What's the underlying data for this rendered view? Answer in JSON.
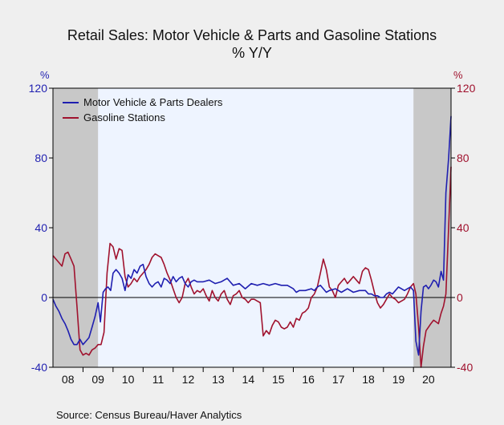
{
  "chart_data": {
    "type": "line",
    "title": "Retail Sales: Motor Vehicle & Parts and Gasoline Stations",
    "subtitle": "% Y/Y",
    "left_axis": {
      "unit": "%",
      "ylim": [
        -40,
        120
      ],
      "ticks": [
        "120",
        "80",
        "40",
        "0",
        "-40"
      ],
      "color": "#1f1fb0"
    },
    "right_axis": {
      "unit": "%",
      "ylim": [
        -40,
        120
      ],
      "ticks": [
        "120",
        "80",
        "40",
        "0",
        "-40"
      ],
      "color": "#a0122e"
    },
    "x_ticks": [
      "08",
      "09",
      "10",
      "11",
      "12",
      "13",
      "14",
      "15",
      "16",
      "17",
      "18",
      "19",
      "20"
    ],
    "x_range": [
      2008.0,
      2021.25
    ],
    "recession_shading": [
      [
        2008.0,
        2009.5
      ],
      [
        2020.0,
        2021.25
      ]
    ],
    "legend": "top-left",
    "grid": false,
    "source": "Source:  Census Bureau/Haver Analytics",
    "series": [
      {
        "name": "Motor Vehicle & Parts Dealers",
        "color": "#1f1fb0",
        "points": [
          [
            2008.0,
            -1
          ],
          [
            2008.1,
            -5
          ],
          [
            2008.2,
            -8
          ],
          [
            2008.3,
            -12
          ],
          [
            2008.4,
            -15
          ],
          [
            2008.5,
            -19
          ],
          [
            2008.6,
            -24
          ],
          [
            2008.7,
            -27
          ],
          [
            2008.8,
            -27
          ],
          [
            2008.9,
            -24
          ],
          [
            2009.0,
            -27
          ],
          [
            2009.1,
            -25
          ],
          [
            2009.2,
            -23
          ],
          [
            2009.3,
            -17
          ],
          [
            2009.4,
            -11
          ],
          [
            2009.5,
            -3
          ],
          [
            2009.58,
            -14
          ],
          [
            2009.67,
            3
          ],
          [
            2009.75,
            5
          ],
          [
            2009.83,
            6
          ],
          [
            2009.92,
            4
          ],
          [
            2010.0,
            14
          ],
          [
            2010.1,
            16
          ],
          [
            2010.2,
            14
          ],
          [
            2010.3,
            11
          ],
          [
            2010.4,
            4
          ],
          [
            2010.5,
            13
          ],
          [
            2010.6,
            11
          ],
          [
            2010.7,
            16
          ],
          [
            2010.8,
            14
          ],
          [
            2010.9,
            18
          ],
          [
            2011.0,
            19
          ],
          [
            2011.1,
            12
          ],
          [
            2011.2,
            8
          ],
          [
            2011.3,
            6
          ],
          [
            2011.4,
            8
          ],
          [
            2011.5,
            9
          ],
          [
            2011.6,
            6
          ],
          [
            2011.7,
            11
          ],
          [
            2011.8,
            10
          ],
          [
            2011.9,
            8
          ],
          [
            2012.0,
            12
          ],
          [
            2012.1,
            9
          ],
          [
            2012.2,
            11
          ],
          [
            2012.3,
            12
          ],
          [
            2012.4,
            8
          ],
          [
            2012.5,
            6
          ],
          [
            2012.6,
            9
          ],
          [
            2012.7,
            10
          ],
          [
            2012.8,
            9
          ],
          [
            2012.9,
            9
          ],
          [
            2013.0,
            9
          ],
          [
            2013.2,
            10
          ],
          [
            2013.4,
            8
          ],
          [
            2013.6,
            9
          ],
          [
            2013.8,
            11
          ],
          [
            2014.0,
            7
          ],
          [
            2014.2,
            8
          ],
          [
            2014.4,
            5
          ],
          [
            2014.6,
            8
          ],
          [
            2014.8,
            7
          ],
          [
            2015.0,
            8
          ],
          [
            2015.2,
            7
          ],
          [
            2015.4,
            8
          ],
          [
            2015.6,
            7
          ],
          [
            2015.8,
            7
          ],
          [
            2016.0,
            5
          ],
          [
            2016.1,
            3
          ],
          [
            2016.2,
            4
          ],
          [
            2016.4,
            4
          ],
          [
            2016.6,
            5
          ],
          [
            2016.7,
            4
          ],
          [
            2016.8,
            6
          ],
          [
            2016.9,
            7
          ],
          [
            2017.0,
            5
          ],
          [
            2017.1,
            3
          ],
          [
            2017.2,
            4
          ],
          [
            2017.4,
            5
          ],
          [
            2017.6,
            3
          ],
          [
            2017.8,
            5
          ],
          [
            2018.0,
            3
          ],
          [
            2018.2,
            4
          ],
          [
            2018.4,
            4
          ],
          [
            2018.5,
            2
          ],
          [
            2018.6,
            2
          ],
          [
            2018.7,
            1
          ],
          [
            2018.8,
            1
          ],
          [
            2018.9,
            0
          ],
          [
            2019.0,
            0
          ],
          [
            2019.1,
            2
          ],
          [
            2019.2,
            3
          ],
          [
            2019.3,
            2
          ],
          [
            2019.4,
            4
          ],
          [
            2019.5,
            6
          ],
          [
            2019.6,
            5
          ],
          [
            2019.7,
            4
          ],
          [
            2019.8,
            5
          ],
          [
            2019.9,
            6
          ],
          [
            2020.0,
            4
          ],
          [
            2020.08,
            -25
          ],
          [
            2020.17,
            -33
          ],
          [
            2020.25,
            -8
          ],
          [
            2020.33,
            6
          ],
          [
            2020.42,
            7
          ],
          [
            2020.5,
            5
          ],
          [
            2020.58,
            7
          ],
          [
            2020.67,
            10
          ],
          [
            2020.75,
            9
          ],
          [
            2020.83,
            6
          ],
          [
            2020.92,
            15
          ],
          [
            2021.0,
            10
          ],
          [
            2021.08,
            60
          ],
          [
            2021.17,
            80
          ],
          [
            2021.25,
            104
          ]
        ]
      },
      {
        "name": "Gasoline Stations",
        "color": "#a0122e",
        "points": [
          [
            2008.0,
            24
          ],
          [
            2008.1,
            22
          ],
          [
            2008.2,
            20
          ],
          [
            2008.3,
            18
          ],
          [
            2008.4,
            25
          ],
          [
            2008.5,
            26
          ],
          [
            2008.6,
            22
          ],
          [
            2008.7,
            18
          ],
          [
            2008.8,
            -5
          ],
          [
            2008.9,
            -30
          ],
          [
            2009.0,
            -33
          ],
          [
            2009.1,
            -32
          ],
          [
            2009.2,
            -33
          ],
          [
            2009.3,
            -30
          ],
          [
            2009.4,
            -29
          ],
          [
            2009.5,
            -27
          ],
          [
            2009.6,
            -27
          ],
          [
            2009.7,
            -20
          ],
          [
            2009.8,
            14
          ],
          [
            2009.9,
            31
          ],
          [
            2010.0,
            29
          ],
          [
            2010.1,
            22
          ],
          [
            2010.2,
            28
          ],
          [
            2010.3,
            27
          ],
          [
            2010.4,
            12
          ],
          [
            2010.5,
            6
          ],
          [
            2010.6,
            8
          ],
          [
            2010.7,
            11
          ],
          [
            2010.8,
            9
          ],
          [
            2010.9,
            12
          ],
          [
            2011.0,
            14
          ],
          [
            2011.1,
            16
          ],
          [
            2011.2,
            19
          ],
          [
            2011.3,
            23
          ],
          [
            2011.4,
            25
          ],
          [
            2011.5,
            24
          ],
          [
            2011.6,
            23
          ],
          [
            2011.7,
            19
          ],
          [
            2011.8,
            14
          ],
          [
            2011.9,
            10
          ],
          [
            2012.0,
            5
          ],
          [
            2012.1,
            0
          ],
          [
            2012.2,
            -3
          ],
          [
            2012.3,
            0
          ],
          [
            2012.4,
            8
          ],
          [
            2012.5,
            11
          ],
          [
            2012.6,
            6
          ],
          [
            2012.7,
            2
          ],
          [
            2012.8,
            4
          ],
          [
            2012.9,
            3
          ],
          [
            2013.0,
            5
          ],
          [
            2013.1,
            1
          ],
          [
            2013.2,
            -2
          ],
          [
            2013.3,
            4
          ],
          [
            2013.4,
            0
          ],
          [
            2013.5,
            -2
          ],
          [
            2013.6,
            2
          ],
          [
            2013.7,
            4
          ],
          [
            2013.8,
            -1
          ],
          [
            2013.9,
            -4
          ],
          [
            2014.0,
            1
          ],
          [
            2014.1,
            2
          ],
          [
            2014.2,
            4
          ],
          [
            2014.3,
            0
          ],
          [
            2014.4,
            -1
          ],
          [
            2014.5,
            -3
          ],
          [
            2014.6,
            -1
          ],
          [
            2014.7,
            -1
          ],
          [
            2014.8,
            -2
          ],
          [
            2014.9,
            -3
          ],
          [
            2015.0,
            -22
          ],
          [
            2015.1,
            -19
          ],
          [
            2015.2,
            -21
          ],
          [
            2015.3,
            -16
          ],
          [
            2015.4,
            -13
          ],
          [
            2015.5,
            -14
          ],
          [
            2015.6,
            -17
          ],
          [
            2015.7,
            -18
          ],
          [
            2015.8,
            -17
          ],
          [
            2015.9,
            -14
          ],
          [
            2016.0,
            -17
          ],
          [
            2016.1,
            -12
          ],
          [
            2016.2,
            -13
          ],
          [
            2016.3,
            -9
          ],
          [
            2016.4,
            -8
          ],
          [
            2016.5,
            -6
          ],
          [
            2016.6,
            0
          ],
          [
            2016.7,
            2
          ],
          [
            2016.8,
            6
          ],
          [
            2016.9,
            14
          ],
          [
            2017.0,
            22
          ],
          [
            2017.1,
            16
          ],
          [
            2017.2,
            6
          ],
          [
            2017.3,
            4
          ],
          [
            2017.4,
            0
          ],
          [
            2017.5,
            7
          ],
          [
            2017.6,
            9
          ],
          [
            2017.7,
            11
          ],
          [
            2017.8,
            8
          ],
          [
            2017.9,
            10
          ],
          [
            2018.0,
            12
          ],
          [
            2018.1,
            10
          ],
          [
            2018.2,
            8
          ],
          [
            2018.3,
            15
          ],
          [
            2018.4,
            17
          ],
          [
            2018.5,
            16
          ],
          [
            2018.6,
            10
          ],
          [
            2018.7,
            3
          ],
          [
            2018.8,
            -3
          ],
          [
            2018.9,
            -6
          ],
          [
            2019.0,
            -4
          ],
          [
            2019.1,
            -1
          ],
          [
            2019.2,
            2
          ],
          [
            2019.3,
            0
          ],
          [
            2019.4,
            -1
          ],
          [
            2019.5,
            -3
          ],
          [
            2019.6,
            -2
          ],
          [
            2019.7,
            -1
          ],
          [
            2019.8,
            2
          ],
          [
            2019.9,
            6
          ],
          [
            2020.0,
            8
          ],
          [
            2020.08,
            2
          ],
          [
            2020.17,
            -17
          ],
          [
            2020.25,
            -40
          ],
          [
            2020.33,
            -28
          ],
          [
            2020.42,
            -19
          ],
          [
            2020.5,
            -17
          ],
          [
            2020.58,
            -15
          ],
          [
            2020.67,
            -13
          ],
          [
            2020.75,
            -14
          ],
          [
            2020.83,
            -15
          ],
          [
            2020.92,
            -9
          ],
          [
            2021.0,
            -5
          ],
          [
            2021.08,
            2
          ],
          [
            2021.17,
            40
          ],
          [
            2021.25,
            75
          ]
        ]
      }
    ]
  }
}
